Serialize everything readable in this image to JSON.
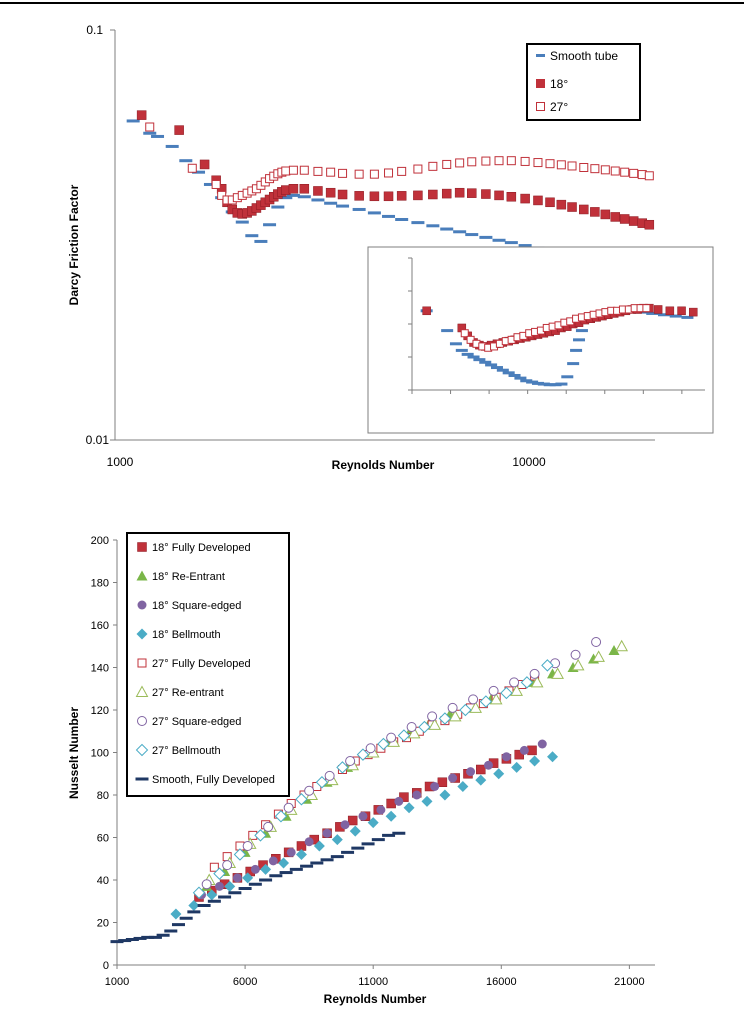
{
  "chart_data": [
    {
      "type": "scatter",
      "xlabel": "Reynolds Number",
      "ylabel": "Darcy Friction Factor",
      "x_scale": "log",
      "y_scale": "log",
      "xlim": [
        1000,
        17000
      ],
      "ylim": [
        0.01,
        0.1
      ],
      "x_tick_labels": [
        "1000",
        "10000"
      ],
      "y_tick_labels": [
        "0.1",
        "0.01"
      ],
      "legend_position": "top-right",
      "series": [
        {
          "name": "Smooth tube",
          "color": "#4a7ebb",
          "marker": "dash",
          "x": [
            1100,
            1200,
            1250,
            1350,
            1450,
            1550,
            1650,
            1750,
            1850,
            1950,
            2050,
            2150,
            2250,
            2350,
            2450,
            2550,
            2700,
            2900,
            3100,
            3300,
            3600,
            3900,
            4200,
            4500,
            4900,
            5300,
            5700,
            6100,
            6500,
            7000,
            7500,
            8000,
            8600,
            9200,
            9800,
            10400,
            11000
          ],
          "y": [
            0.06,
            0.056,
            0.055,
            0.052,
            0.048,
            0.045,
            0.042,
            0.039,
            0.036,
            0.034,
            0.0315,
            0.0305,
            0.0335,
            0.037,
            0.039,
            0.0395,
            0.0392,
            0.0385,
            0.0378,
            0.0372,
            0.0365,
            0.0358,
            0.0351,
            0.0345,
            0.0339,
            0.0333,
            0.0327,
            0.0322,
            0.0317,
            0.0312,
            0.0307,
            0.0303,
            0.0298,
            0.0294,
            0.029,
            0.0286,
            0.0283
          ]
        },
        {
          "name": "18°",
          "color": "#c0313a",
          "marker": "filled-square",
          "x": [
            1150,
            1400,
            1600,
            1700,
            1750,
            1800,
            1850,
            1900,
            1950,
            2000,
            2050,
            2100,
            2150,
            2200,
            2250,
            2300,
            2350,
            2400,
            2450,
            2550,
            2700,
            2900,
            3100,
            3300,
            3600,
            3900,
            4200,
            4500,
            4900,
            5300,
            5700,
            6100,
            6500,
            7000,
            7500,
            8000,
            8600,
            9200,
            9800,
            10400,
            11000,
            11700,
            12400,
            13100,
            13800,
            14500,
            15200,
            15900,
            16500
          ],
          "y": [
            0.062,
            0.057,
            0.047,
            0.043,
            0.041,
            0.038,
            0.0365,
            0.0358,
            0.0356,
            0.0358,
            0.0362,
            0.0368,
            0.0374,
            0.038,
            0.0386,
            0.0392,
            0.0398,
            0.0403,
            0.0407,
            0.041,
            0.041,
            0.0405,
            0.0401,
            0.0397,
            0.0394,
            0.0393,
            0.0393,
            0.0394,
            0.0395,
            0.0397,
            0.0399,
            0.0401,
            0.04,
            0.0398,
            0.0395,
            0.0392,
            0.0388,
            0.0384,
            0.038,
            0.0375,
            0.037,
            0.0365,
            0.036,
            0.0355,
            0.035,
            0.0346,
            0.0342,
            0.0338,
            0.0335
          ]
        },
        {
          "name": "27°",
          "color": "#c0313a",
          "marker": "hollow-square",
          "x": [
            1200,
            1500,
            1700,
            1750,
            1800,
            1850,
            1900,
            1950,
            2000,
            2050,
            2100,
            2150,
            2200,
            2250,
            2300,
            2350,
            2400,
            2450,
            2550,
            2700,
            2900,
            3100,
            3300,
            3600,
            3900,
            4200,
            4500,
            4900,
            5300,
            5700,
            6100,
            6500,
            7000,
            7500,
            8000,
            8600,
            9200,
            9800,
            10400,
            11000,
            11700,
            12400,
            13100,
            13800,
            14500,
            15200,
            15900,
            16500
          ],
          "y": [
            0.058,
            0.046,
            0.042,
            0.0395,
            0.0385,
            0.0385,
            0.039,
            0.0395,
            0.04,
            0.0405,
            0.041,
            0.0418,
            0.0426,
            0.0434,
            0.044,
            0.0446,
            0.045,
            0.0453,
            0.0455,
            0.0455,
            0.0452,
            0.045,
            0.0447,
            0.0445,
            0.0445,
            0.0448,
            0.0452,
            0.0458,
            0.0465,
            0.047,
            0.0474,
            0.0477,
            0.0479,
            0.048,
            0.048,
            0.0478,
            0.0475,
            0.0472,
            0.0469,
            0.0466,
            0.0462,
            0.0459,
            0.0456,
            0.0453,
            0.045,
            0.0447,
            0.0444,
            0.0441
          ]
        }
      ]
    },
    {
      "type": "scatter",
      "inset": true,
      "xlabel": "",
      "ylabel": "",
      "series": [
        {
          "name": "Smooth tube",
          "color": "#4a7ebb",
          "marker": "dash",
          "x": [
            0.05,
            0.12,
            0.15,
            0.17,
            0.19,
            0.21,
            0.23,
            0.25,
            0.27,
            0.29,
            0.31,
            0.33,
            0.35,
            0.37,
            0.39,
            0.41,
            0.43,
            0.45,
            0.47,
            0.49,
            0.51,
            0.53,
            0.55,
            0.56,
            0.57,
            0.58,
            0.6,
            0.63,
            0.66,
            0.7,
            0.74,
            0.78,
            0.82,
            0.86,
            0.9,
            0.94
          ],
          "y": [
            0.6,
            0.45,
            0.35,
            0.3,
            0.27,
            0.25,
            0.23,
            0.21,
            0.19,
            0.17,
            0.15,
            0.13,
            0.11,
            0.09,
            0.07,
            0.06,
            0.05,
            0.045,
            0.04,
            0.04,
            0.045,
            0.1,
            0.2,
            0.3,
            0.38,
            0.45,
            0.52,
            0.56,
            0.58,
            0.6,
            0.6,
            0.59,
            0.58,
            0.57,
            0.56,
            0.55
          ]
        },
        {
          "name": "18°",
          "color": "#c0313a",
          "marker": "filled-square",
          "x": [
            0.05,
            0.17,
            0.19,
            0.21,
            0.23,
            0.25,
            0.27,
            0.29,
            0.31,
            0.33,
            0.35,
            0.37,
            0.39,
            0.41,
            0.43,
            0.45,
            0.47,
            0.49,
            0.51,
            0.53,
            0.55,
            0.57,
            0.59,
            0.61,
            0.63,
            0.65,
            0.67,
            0.69,
            0.71,
            0.73,
            0.75,
            0.77,
            0.79,
            0.81,
            0.84,
            0.88,
            0.92,
            0.96
          ],
          "y": [
            0.6,
            0.47,
            0.41,
            0.36,
            0.34,
            0.33,
            0.34,
            0.35,
            0.36,
            0.37,
            0.38,
            0.39,
            0.4,
            0.41,
            0.42,
            0.43,
            0.44,
            0.45,
            0.47,
            0.48,
            0.5,
            0.51,
            0.53,
            0.54,
            0.55,
            0.56,
            0.57,
            0.58,
            0.59,
            0.6,
            0.61,
            0.61,
            0.62,
            0.62,
            0.61,
            0.6,
            0.6,
            0.59
          ]
        },
        {
          "name": "27°",
          "color": "#c0313a",
          "marker": "hollow-square",
          "x": [
            0.18,
            0.2,
            0.22,
            0.24,
            0.26,
            0.28,
            0.3,
            0.32,
            0.34,
            0.36,
            0.38,
            0.4,
            0.42,
            0.44,
            0.46,
            0.48,
            0.5,
            0.52,
            0.54,
            0.56,
            0.58,
            0.6,
            0.62,
            0.64,
            0.66,
            0.68,
            0.7,
            0.72,
            0.74,
            0.76,
            0.78,
            0.8
          ],
          "y": [
            0.43,
            0.38,
            0.35,
            0.33,
            0.32,
            0.33,
            0.35,
            0.37,
            0.38,
            0.4,
            0.41,
            0.43,
            0.44,
            0.45,
            0.47,
            0.48,
            0.49,
            0.51,
            0.52,
            0.54,
            0.55,
            0.56,
            0.57,
            0.58,
            0.59,
            0.6,
            0.6,
            0.61,
            0.61,
            0.62,
            0.62,
            0.62
          ]
        }
      ]
    },
    {
      "type": "scatter",
      "xlabel": "Reynolds Number",
      "ylabel": "Nusselt Number",
      "xlim": [
        1000,
        22000
      ],
      "ylim": [
        0,
        200
      ],
      "x_ticks": [
        1000,
        6000,
        11000,
        16000,
        21000
      ],
      "y_ticks": [
        0,
        20,
        40,
        60,
        80,
        100,
        120,
        140,
        160,
        180,
        200
      ],
      "legend_position": "top-left",
      "series": [
        {
          "name": "18° Fully Developed",
          "color": "#c0313a",
          "marker": "filled-square",
          "x": [
            4200,
            4700,
            5200,
            5700,
            6200,
            6700,
            7200,
            7700,
            8200,
            8700,
            9200,
            9700,
            10200,
            10700,
            11200,
            11700,
            12200,
            12700,
            13200,
            13700,
            14200,
            14700,
            15200,
            15700,
            16200,
            16700,
            17200
          ],
          "y": [
            32,
            35,
            38,
            41,
            44,
            47,
            50,
            53,
            56,
            59,
            62,
            65,
            68,
            70,
            73,
            76,
            79,
            81,
            84,
            86,
            88,
            90,
            92,
            95,
            97,
            99,
            101
          ]
        },
        {
          "name": "18° Re-Entrant",
          "color": "#7ab648",
          "marker": "triangle",
          "x": [
            4500,
            5200,
            6000,
            6800,
            7600,
            8400,
            9200,
            10000,
            10800,
            11600,
            12400,
            13200,
            14000,
            14800,
            15600,
            16400,
            17200,
            18000,
            18800,
            19600,
            20400
          ],
          "y": [
            37,
            44,
            53,
            62,
            70,
            78,
            86,
            93,
            100,
            105,
            109,
            114,
            118,
            121,
            125,
            129,
            133,
            137,
            140,
            144,
            148
          ]
        },
        {
          "name": "18° Square-edged",
          "color": "#8064a2",
          "marker": "circle",
          "x": [
            4300,
            5000,
            5700,
            6400,
            7100,
            7800,
            8500,
            9200,
            9900,
            10600,
            11300,
            12000,
            12700,
            13400,
            14100,
            14800,
            15500,
            16200,
            16900,
            17600
          ],
          "y": [
            33,
            37,
            41,
            45,
            49,
            53,
            58,
            62,
            66,
            70,
            73,
            77,
            80,
            84,
            88,
            91,
            94,
            98,
            101,
            104
          ]
        },
        {
          "name": "18° Bellmouth",
          "color": "#4bacc6",
          "marker": "diamond",
          "x": [
            3300,
            4000,
            4700,
            5400,
            6100,
            6800,
            7500,
            8200,
            8900,
            9600,
            10300,
            11000,
            11700,
            12400,
            13100,
            13800,
            14500,
            15200,
            15900,
            16600,
            17300,
            18000
          ],
          "y": [
            24,
            28,
            33,
            37,
            41,
            45,
            48,
            52,
            56,
            59,
            63,
            67,
            70,
            74,
            77,
            80,
            84,
            87,
            90,
            93,
            96,
            98
          ]
        },
        {
          "name": "27° Fully Developed",
          "color": "#c0313a",
          "marker": "hollow-square",
          "x": [
            4800,
            5300,
            5800,
            6300,
            6800,
            7300,
            7800,
            8300,
            8800,
            9300,
            9800,
            10300,
            10800,
            11300,
            11800,
            12300,
            12800,
            13300,
            13800,
            14300,
            14800,
            15300,
            15800,
            16300,
            16800,
            17300
          ],
          "y": [
            46,
            51,
            56,
            61,
            66,
            71,
            76,
            80,
            84,
            88,
            92,
            96,
            99,
            102,
            105,
            107,
            110,
            113,
            115,
            118,
            121,
            123,
            126,
            129,
            132,
            136
          ]
        },
        {
          "name": "27° Re-entrant",
          "color": "#9bbb59",
          "marker": "hollow-triangle",
          "x": [
            4600,
            5400,
            6200,
            7000,
            7800,
            8600,
            9400,
            10200,
            11000,
            11800,
            12600,
            13400,
            14200,
            15000,
            15800,
            16600,
            17400,
            18200,
            19000,
            19800,
            20700
          ],
          "y": [
            40,
            48,
            57,
            65,
            73,
            80,
            87,
            94,
            100,
            105,
            109,
            113,
            117,
            121,
            125,
            129,
            133,
            137,
            141,
            145,
            150
          ]
        },
        {
          "name": "27° Square-edged",
          "color": "#8064a2",
          "marker": "hollow-circle",
          "x": [
            4500,
            5300,
            6100,
            6900,
            7700,
            8500,
            9300,
            10100,
            10900,
            11700,
            12500,
            13300,
            14100,
            14900,
            15700,
            16500,
            17300,
            18100,
            18900,
            19700
          ],
          "y": [
            38,
            47,
            56,
            65,
            74,
            82,
            89,
            96,
            102,
            107,
            112,
            117,
            121,
            125,
            129,
            133,
            137,
            142,
            146,
            152
          ]
        },
        {
          "name": "27° Bellmouth",
          "color": "#4bacc6",
          "marker": "hollow-diamond",
          "x": [
            4200,
            5000,
            5800,
            6600,
            7400,
            8200,
            9000,
            9800,
            10600,
            11400,
            12200,
            13000,
            13800,
            14600,
            15400,
            16200,
            17000,
            17800
          ],
          "y": [
            34,
            43,
            52,
            61,
            70,
            78,
            86,
            93,
            99,
            104,
            108,
            112,
            116,
            120,
            124,
            128,
            133,
            141
          ]
        },
        {
          "name": "Smooth, Fully Developed",
          "color": "#1f3864",
          "marker": "dash",
          "x": [
            1000,
            1300,
            1600,
            1900,
            2200,
            2500,
            2800,
            3100,
            3400,
            3700,
            4000,
            4400,
            4800,
            5200,
            5600,
            6000,
            6400,
            6800,
            7200,
            7600,
            8000,
            8400,
            8800,
            9200,
            9600,
            10000,
            10400,
            10800,
            11200,
            11600,
            12000
          ],
          "y": [
            11,
            11.5,
            12,
            12.5,
            13,
            13,
            14,
            16,
            19,
            22,
            25,
            28,
            30,
            32,
            34,
            36,
            38,
            40,
            42,
            43.5,
            45,
            46.5,
            48,
            49.5,
            51,
            53,
            55,
            57,
            59,
            61,
            62
          ]
        }
      ]
    }
  ]
}
